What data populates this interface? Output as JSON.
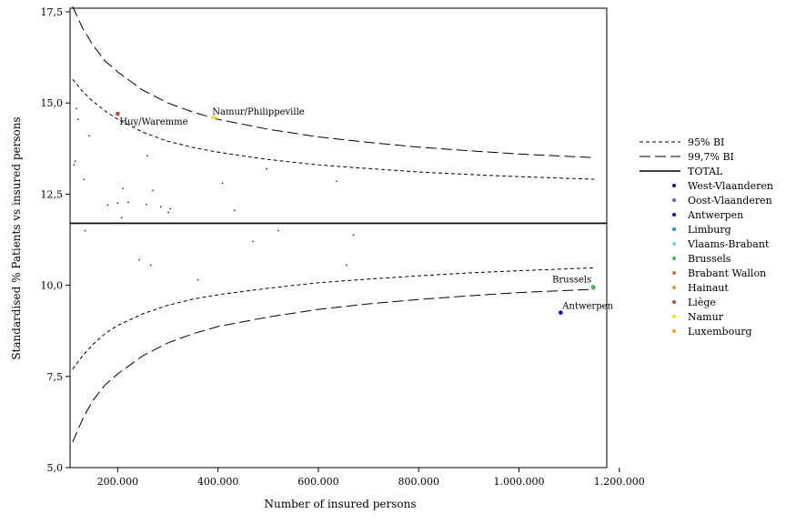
{
  "chart_data": {
    "type": "scatter",
    "title": "",
    "xlabel": "Number of insured persons",
    "ylabel": "Standardised % Patients vs insured persons",
    "xlim": [
      105000,
      1175000
    ],
    "ylim": [
      5.0,
      17.6
    ],
    "x_ticks": [
      200000,
      400000,
      600000,
      800000,
      1000000,
      1200000
    ],
    "x_tick_labels": [
      "200.000",
      "400.000",
      "600.000",
      "800.000",
      "1.000.000",
      "1.200.000"
    ],
    "y_ticks": [
      5.0,
      7.5,
      10.0,
      12.5,
      15.0,
      17.5
    ],
    "y_tick_labels": [
      "5,0",
      "7,5",
      "10,0",
      "12,5",
      "15,0",
      "17,5"
    ],
    "grid": false,
    "legend_position": "right",
    "total": 11.7,
    "ci_x": [
      110000,
      130000,
      150000,
      175000,
      200000,
      250000,
      300000,
      350000,
      400000,
      500000,
      600000,
      700000,
      800000,
      900000,
      1000000,
      1150000
    ],
    "ci95_upper": [
      15.65,
      15.32,
      15.05,
      14.78,
      14.55,
      14.2,
      13.95,
      13.78,
      13.65,
      13.45,
      13.3,
      13.2,
      13.11,
      13.04,
      12.98,
      12.91
    ],
    "ci95_lower": [
      7.7,
      8.07,
      8.37,
      8.68,
      8.9,
      9.22,
      9.45,
      9.62,
      9.74,
      9.92,
      10.07,
      10.17,
      10.26,
      10.34,
      10.4,
      10.48
    ],
    "ci997_upper": [
      17.65,
      17.05,
      16.6,
      16.15,
      15.85,
      15.35,
      15.0,
      14.75,
      14.55,
      14.28,
      14.07,
      13.92,
      13.79,
      13.69,
      13.6,
      13.5
    ],
    "ci997_lower": [
      5.7,
      6.33,
      6.83,
      7.27,
      7.57,
      8.07,
      8.42,
      8.67,
      8.87,
      9.13,
      9.34,
      9.49,
      9.61,
      9.71,
      9.8,
      9.89
    ],
    "legend": [
      {
        "key": "ci95",
        "label": "95% BI",
        "style": "short-dash"
      },
      {
        "key": "ci997",
        "label": "99,7% BI",
        "style": "long-dash"
      },
      {
        "key": "total",
        "label": "TOTAL",
        "style": "solid"
      },
      {
        "key": "west-vlaanderen",
        "label": "West-Vlaanderen",
        "color": "#0a1a6e"
      },
      {
        "key": "oost-vlaanderen",
        "label": "Oost-Vlaanderen",
        "color": "#3d6fd0"
      },
      {
        "key": "antwerpen",
        "label": "Antwerpen",
        "color": "#1010cc"
      },
      {
        "key": "limburg",
        "label": "Limburg",
        "color": "#2f8fd8"
      },
      {
        "key": "vlaams-brabant",
        "label": "Vlaams-Brabant",
        "color": "#80c8ec"
      },
      {
        "key": "brussels",
        "label": "Brussels",
        "color": "#3cb84a"
      },
      {
        "key": "brabant-wallon",
        "label": "Brabant Wallon",
        "color": "#d06a2a"
      },
      {
        "key": "hainaut",
        "label": "Hainaut",
        "color": "#f08a1e"
      },
      {
        "key": "liege",
        "label": "Liège",
        "color": "#b8503a"
      },
      {
        "key": "namur",
        "label": "Namur",
        "color": "#f2e200"
      },
      {
        "key": "luxembourg",
        "label": "Luxembourg",
        "color": "#f0a020"
      }
    ],
    "points": [
      {
        "x": 113000,
        "y": 13.3
      },
      {
        "x": 115000,
        "y": 13.4
      },
      {
        "x": 118000,
        "y": 14.85
      },
      {
        "x": 121000,
        "y": 14.55
      },
      {
        "x": 133000,
        "y": 12.9
      },
      {
        "x": 135000,
        "y": 11.5
      },
      {
        "x": 143000,
        "y": 14.1
      },
      {
        "x": 180000,
        "y": 12.2
      },
      {
        "x": 200000,
        "y": 12.25
      },
      {
        "x": 208000,
        "y": 11.85
      },
      {
        "x": 210000,
        "y": 12.65
      },
      {
        "x": 221000,
        "y": 12.28
      },
      {
        "x": 243000,
        "y": 10.7
      },
      {
        "x": 257000,
        "y": 12.22
      },
      {
        "x": 259000,
        "y": 13.55
      },
      {
        "x": 266000,
        "y": 10.55
      },
      {
        "x": 270000,
        "y": 12.6
      },
      {
        "x": 286000,
        "y": 12.15
      },
      {
        "x": 301000,
        "y": 12.0
      },
      {
        "x": 305000,
        "y": 12.1
      },
      {
        "x": 360000,
        "y": 10.15
      },
      {
        "x": 409000,
        "y": 12.8
      },
      {
        "x": 433000,
        "y": 12.05
      },
      {
        "x": 470000,
        "y": 11.2
      },
      {
        "x": 497000,
        "y": 13.2
      },
      {
        "x": 520000,
        "y": 11.5
      },
      {
        "x": 636000,
        "y": 12.85
      },
      {
        "x": 656000,
        "y": 10.55
      },
      {
        "x": 670000,
        "y": 11.38
      },
      {
        "x": 200000,
        "y": 14.7,
        "group": "liege",
        "label": "Huy/Waremme"
      },
      {
        "x": 392000,
        "y": 14.6,
        "group": "namur",
        "label": "Namur/Philippeville"
      },
      {
        "x": 1148000,
        "y": 9.95,
        "group": "brussels",
        "label": "Brussels"
      },
      {
        "x": 1083000,
        "y": 9.25,
        "group": "antwerpen",
        "label": "Antwerpen"
      }
    ]
  }
}
